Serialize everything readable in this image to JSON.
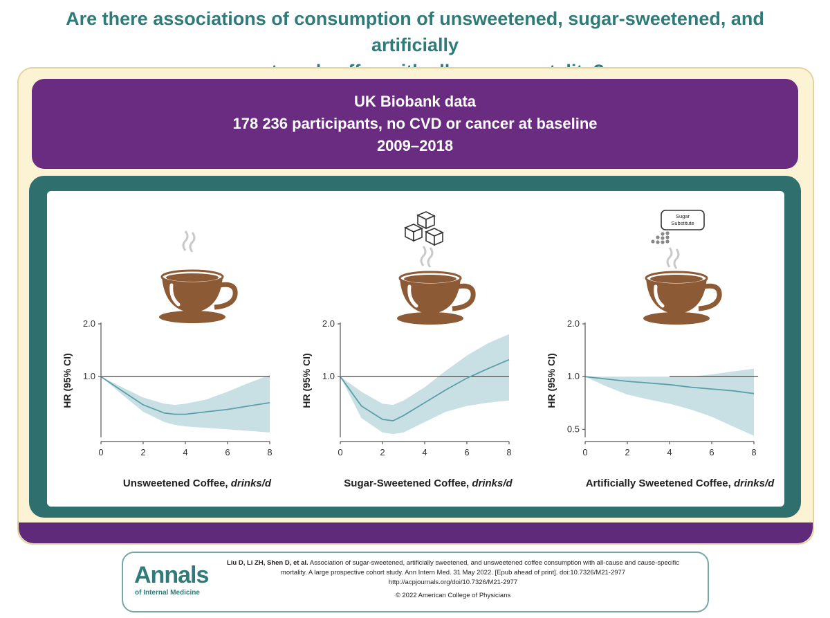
{
  "title": {
    "line1": "Are there associations of consumption of unsweetened, sugar-sweetened, and artificially",
    "line2": "sweetened coffee with all-cause mortality?"
  },
  "banner": {
    "line1": "UK Biobank data",
    "line2": "178 236 participants, no CVD or cancer at baseline",
    "line3": "2009–2018"
  },
  "icons": {
    "cup": "coffee-cup-icon",
    "steam": "steam-icon",
    "sugar": "sugar-cubes-icon",
    "substitute": "sugar-substitute-icon"
  },
  "sugar_substitute_label": {
    "line1": "Sugar",
    "line2": "Substitute"
  },
  "colors": {
    "title_teal": "#2e7b79",
    "purple": "#6a2c80",
    "box_teal": "#2f6f6e",
    "cream": "#fcf3d4",
    "ci_band": "#c8dfe3",
    "curve": "#5b9fa8",
    "coffee_brown": "#8d5a36"
  },
  "chart_data": [
    {
      "type": "line",
      "ylabel": "HR (95% CI)",
      "xlabel": "Unsweetened Coffee,",
      "xlabel_unit": "drinks/d",
      "xlim": [
        0,
        8
      ],
      "ylim": [
        0.45,
        2.0
      ],
      "xticks": [
        "0",
        "2",
        "4",
        "6",
        "8"
      ],
      "yticks": [
        {
          "value": 1.0,
          "label": "1.0"
        },
        {
          "value": 2.0,
          "label": "2.0"
        }
      ],
      "reference_line": 1.0,
      "reference_start": 0,
      "reference_end": 8,
      "x": [
        0,
        1,
        2,
        3,
        3.5,
        4,
        5,
        6,
        7,
        8
      ],
      "hr": [
        1.0,
        0.83,
        0.69,
        0.62,
        0.61,
        0.61,
        0.63,
        0.65,
        0.68,
        0.71
      ],
      "lower": [
        1.0,
        0.79,
        0.63,
        0.55,
        0.53,
        0.52,
        0.51,
        0.5,
        0.49,
        0.48
      ],
      "upper": [
        1.0,
        0.87,
        0.76,
        0.7,
        0.69,
        0.7,
        0.74,
        0.82,
        0.92,
        1.02
      ]
    },
    {
      "type": "line",
      "ylabel": "HR (95% CI)",
      "xlabel": "Sugar-Sweetened Coffee,",
      "xlabel_unit": "drinks/d",
      "xlim": [
        0,
        8
      ],
      "ylim": [
        0.45,
        2.0
      ],
      "xticks": [
        "0",
        "2",
        "4",
        "6",
        "8"
      ],
      "yticks": [
        {
          "value": 1.0,
          "label": "1.0"
        },
        {
          "value": 2.0,
          "label": "2.0"
        }
      ],
      "reference_line": 1.0,
      "reference_start": 0,
      "reference_end": 8,
      "x": [
        0,
        1,
        2,
        2.5,
        3,
        4,
        5,
        6,
        7,
        8
      ],
      "hr": [
        1.0,
        0.68,
        0.57,
        0.56,
        0.6,
        0.71,
        0.84,
        0.98,
        1.11,
        1.25
      ],
      "lower": [
        1.0,
        0.58,
        0.48,
        0.47,
        0.48,
        0.55,
        0.63,
        0.68,
        0.71,
        0.73
      ],
      "upper": [
        1.0,
        0.82,
        0.7,
        0.69,
        0.73,
        0.87,
        1.08,
        1.32,
        1.55,
        1.75
      ]
    },
    {
      "type": "line",
      "ylabel": "HR (95% CI)",
      "xlabel": "Artificially Sweetened Coffee,",
      "xlabel_unit": "drinks/d",
      "xlim": [
        0,
        8
      ],
      "ylim": [
        0.45,
        2.0
      ],
      "xticks": [
        "0",
        "2",
        "4",
        "6",
        "8"
      ],
      "yticks": [
        {
          "value": 0.5,
          "label": "0.5"
        },
        {
          "value": 1.0,
          "label": "1.0"
        },
        {
          "value": 2.0,
          "label": "2.0"
        }
      ],
      "reference_line": 1.0,
      "reference_start": 4,
      "reference_end": 8.2,
      "x": [
        0,
        1,
        2,
        3,
        4,
        5,
        6,
        7,
        8
      ],
      "hr": [
        1.0,
        0.97,
        0.94,
        0.92,
        0.9,
        0.87,
        0.85,
        0.83,
        0.8
      ],
      "lower": [
        1.0,
        0.88,
        0.79,
        0.74,
        0.7,
        0.65,
        0.59,
        0.52,
        0.46
      ],
      "upper": [
        1.0,
        1.0,
        1.0,
        1.0,
        1.0,
        1.0,
        1.03,
        1.07,
        1.11
      ]
    }
  ],
  "citation": {
    "logo": "Annals",
    "logo_sub": "of Internal Medicine",
    "authors": "Liu D, Li ZH, Shen D, et al.",
    "line1_rest": "Association of sugar-sweetened, artificially sweetened, and unsweetened coffee consumption with all-cause and cause-specific",
    "line2": "mortality. A large prospective cohort study. Ann Intern Med. 31 May 2022. [Epub ahead of print]. doi:10.7326/M21-2977",
    "line3": "http://acpjournals.org/doi/10.7326/M21-2977",
    "line4": "© 2022 American College of Physicians"
  }
}
